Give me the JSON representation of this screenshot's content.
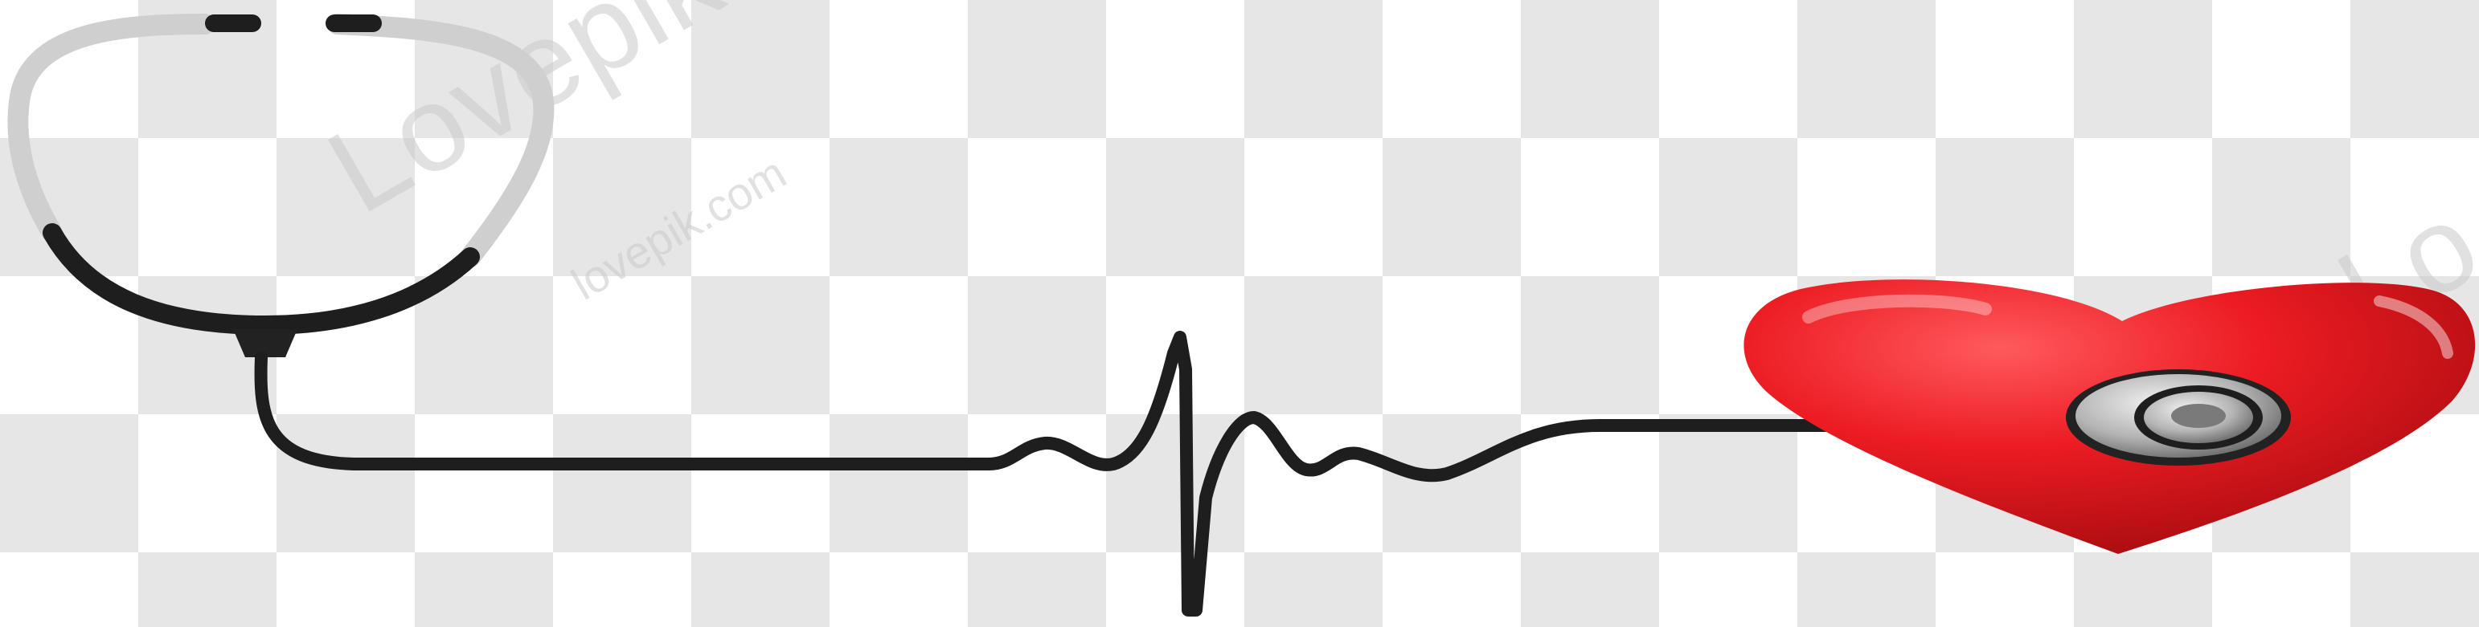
{
  "watermark": {
    "main": "Lovepik",
    "sub": "lovepik.com",
    "right": "Lo"
  },
  "icons": {
    "stethoscope": "stethoscope-icon",
    "heart": "heart-icon",
    "chest_piece": "stethoscope-chest-piece-icon",
    "ekg_line": "heartbeat-line-icon"
  },
  "colors": {
    "heart": "#e8141b",
    "tube": "#1e1e1e",
    "metal": "#b9b9b9",
    "checker": "#e6e6e6"
  }
}
